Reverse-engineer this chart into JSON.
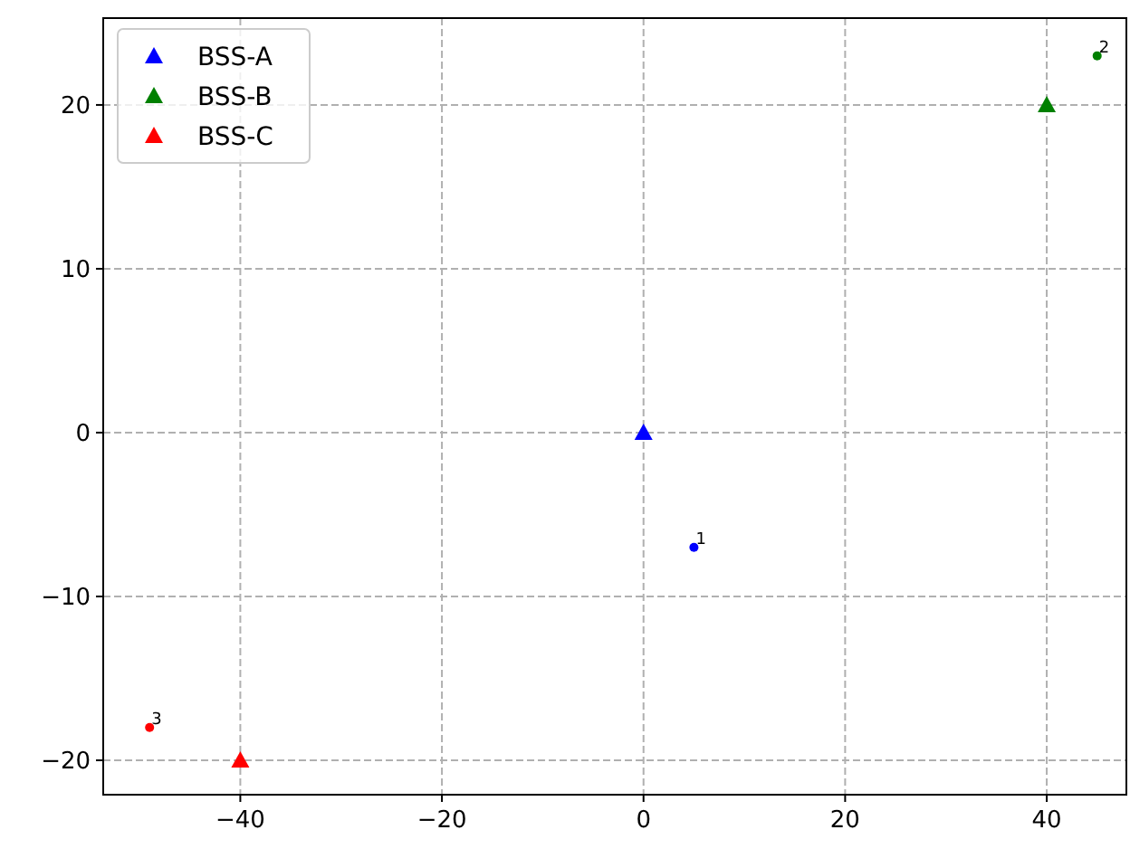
{
  "chart_data": {
    "type": "scatter",
    "series": [
      {
        "name": "BSS-A",
        "color": "#0000ff",
        "marker": "triangle",
        "x": [
          0
        ],
        "values": [
          0
        ]
      },
      {
        "name": "BSS-B",
        "color": "#008000",
        "marker": "triangle",
        "x": [
          40
        ],
        "values": [
          20
        ]
      },
      {
        "name": "BSS-C",
        "color": "#ff0000",
        "marker": "triangle",
        "x": [
          -40
        ],
        "values": [
          -20
        ]
      },
      {
        "color": "#0000ff",
        "marker": "circle",
        "x": [
          5
        ],
        "values": [
          -7
        ]
      },
      {
        "color": "#008000",
        "marker": "circle",
        "x": [
          45
        ],
        "values": [
          23
        ]
      },
      {
        "color": "#ff0000",
        "marker": "circle",
        "x": [
          -49
        ],
        "values": [
          -18
        ]
      }
    ],
    "annotations": [
      {
        "text": "1",
        "x": 5,
        "y": -7
      },
      {
        "text": "2",
        "x": 45,
        "y": 23
      },
      {
        "text": "3",
        "x": -49,
        "y": -18
      }
    ],
    "xlim": [
      -53.6,
      47.9
    ],
    "ylim": [
      -22.1,
      25.3
    ],
    "xticks": [
      {
        "value": -40,
        "label": "−40"
      },
      {
        "value": -20,
        "label": "−20"
      },
      0,
      20,
      40
    ],
    "yticks": [
      {
        "value": -20,
        "label": "−20"
      },
      {
        "value": -10,
        "label": "−10"
      },
      0,
      10,
      20
    ],
    "grid": true,
    "legend": "top left"
  }
}
